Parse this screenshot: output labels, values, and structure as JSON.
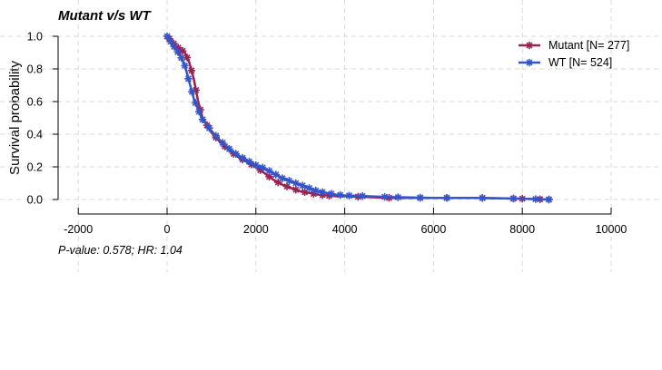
{
  "chart_data": {
    "type": "line",
    "title": "Mutant v/s WT",
    "xlabel": "",
    "ylabel": "Survival probability",
    "xlim": [
      -2300,
      10300
    ],
    "ylim": [
      -0.04,
      1.04
    ],
    "xticks": [
      -2000,
      0,
      2000,
      4000,
      6000,
      8000,
      10000
    ],
    "xtick_labels": [
      "-2000",
      "0",
      "2000",
      "4000",
      "6000",
      "8000",
      "10000"
    ],
    "yticks": [
      0.0,
      0.2,
      0.4,
      0.6,
      0.8,
      1.0
    ],
    "ytick_labels": [
      "0.0",
      "0.2",
      "0.4",
      "0.6",
      "0.8",
      "1.0"
    ],
    "grid": true,
    "legend_position": "top-right",
    "annotation": "P-value: 0.578; HR: 1.04",
    "series": [
      {
        "name": "Mutant [N= 277]",
        "color": "#9b2150",
        "marker": "asterisk",
        "x": [
          0,
          100,
          200,
          300,
          400,
          500,
          600,
          700,
          800,
          1000,
          1200,
          1400,
          1600,
          1800,
          2000,
          2200,
          2400,
          2600,
          2800,
          3000,
          3200,
          3400,
          3600,
          3800,
          4000,
          4500,
          5000,
          6000,
          7000,
          8000,
          8600
        ],
        "y": [
          1.0,
          0.97,
          0.94,
          0.92,
          0.9,
          0.84,
          0.74,
          0.6,
          0.5,
          0.41,
          0.35,
          0.3,
          0.26,
          0.23,
          0.2,
          0.16,
          0.12,
          0.09,
          0.07,
          0.05,
          0.04,
          0.03,
          0.025,
          0.02,
          0.02,
          0.015,
          0.01,
          0.01,
          0.01,
          0.005,
          0.0
        ],
        "censor_x": [
          50,
          150,
          250,
          350,
          450,
          550,
          650,
          750,
          900,
          1100,
          1300,
          1500,
          1700,
          1900,
          2100,
          2300,
          2500,
          2700,
          2900,
          3100,
          3300,
          3500,
          3650,
          4300,
          5000,
          5700,
          6300,
          7100,
          7800,
          8000,
          8400,
          8600
        ]
      },
      {
        "name": "WT [N= 524]",
        "color": "#3355cc",
        "marker": "asterisk",
        "x": [
          0,
          100,
          200,
          300,
          400,
          500,
          600,
          700,
          800,
          1000,
          1200,
          1400,
          1600,
          1800,
          2000,
          2200,
          2400,
          2600,
          2800,
          3000,
          3200,
          3400,
          3600,
          3800,
          4000,
          4500,
          5000,
          6000,
          7000,
          8000,
          8600
        ],
        "y": [
          1.0,
          0.96,
          0.92,
          0.88,
          0.82,
          0.72,
          0.62,
          0.55,
          0.49,
          0.42,
          0.36,
          0.31,
          0.27,
          0.24,
          0.21,
          0.19,
          0.16,
          0.13,
          0.11,
          0.09,
          0.07,
          0.05,
          0.04,
          0.03,
          0.025,
          0.02,
          0.015,
          0.01,
          0.01,
          0.005,
          0.0
        ],
        "censor_x": [
          0,
          80,
          160,
          240,
          320,
          400,
          480,
          560,
          640,
          720,
          800,
          950,
          1100,
          1250,
          1400,
          1550,
          1700,
          1850,
          2000,
          2150,
          2300,
          2450,
          2600,
          2750,
          2900,
          3050,
          3200,
          3350,
          3500,
          3700,
          3900,
          4100,
          4400,
          4900,
          5200,
          5700,
          6300,
          7100,
          7800,
          8300,
          8600
        ]
      }
    ]
  }
}
